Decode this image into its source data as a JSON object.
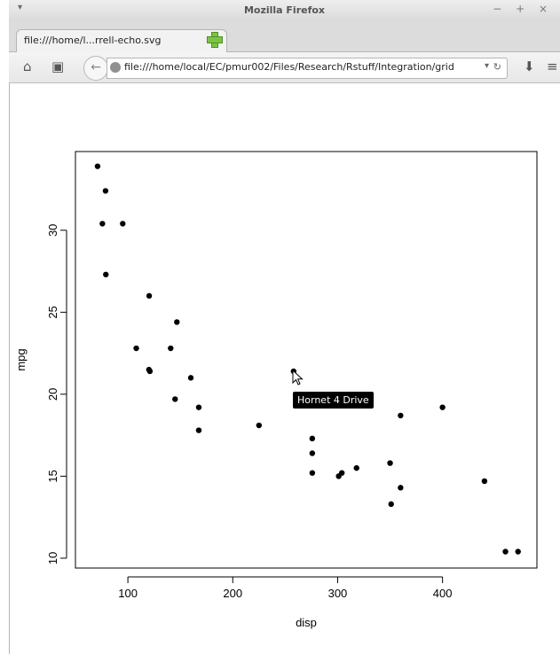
{
  "window": {
    "title": "Mozilla Firefox",
    "menu": "▾",
    "controls": "− + ×"
  },
  "tab": {
    "label": "file:///home/l...rrell-echo.svg",
    "close": "×"
  },
  "nav": {
    "url": "file:///home/local/EC/pmur002/Files/Research/Rstuff/Integration/grid"
  },
  "tooltip": {
    "text": "Hornet 4 Drive"
  },
  "chart_data": {
    "type": "scatter",
    "xlabel": "disp",
    "ylabel": "mpg",
    "xlim": [
      50,
      490
    ],
    "ylim": [
      9.4,
      34.8
    ],
    "xticks": [
      100,
      200,
      300,
      400
    ],
    "yticks": [
      10,
      15,
      20,
      25,
      30
    ],
    "points": [
      {
        "x": 71.1,
        "y": 33.9
      },
      {
        "x": 78.7,
        "y": 32.4
      },
      {
        "x": 75.7,
        "y": 30.4
      },
      {
        "x": 95.1,
        "y": 30.4
      },
      {
        "x": 79,
        "y": 27.3
      },
      {
        "x": 120.3,
        "y": 26
      },
      {
        "x": 146.7,
        "y": 24.4
      },
      {
        "x": 108,
        "y": 22.8
      },
      {
        "x": 140.8,
        "y": 22.8
      },
      {
        "x": 121,
        "y": 21.4
      },
      {
        "x": 160,
        "y": 21
      },
      {
        "x": 120.1,
        "y": 21.5
      },
      {
        "x": 258,
        "y": 21.4
      },
      {
        "x": 145,
        "y": 19.7
      },
      {
        "x": 167.6,
        "y": 19.2
      },
      {
        "x": 167.6,
        "y": 17.8
      },
      {
        "x": 225,
        "y": 18.1
      },
      {
        "x": 275.8,
        "y": 17.3
      },
      {
        "x": 275.8,
        "y": 16.4
      },
      {
        "x": 275.8,
        "y": 15.2
      },
      {
        "x": 301,
        "y": 15
      },
      {
        "x": 304,
        "y": 15.2
      },
      {
        "x": 318,
        "y": 15.5
      },
      {
        "x": 350,
        "y": 15.8
      },
      {
        "x": 360,
        "y": 18.7
      },
      {
        "x": 360,
        "y": 14.3
      },
      {
        "x": 400,
        "y": 19.2
      },
      {
        "x": 440,
        "y": 14.7
      },
      {
        "x": 351,
        "y": 13.3
      },
      {
        "x": 460,
        "y": 10.4
      },
      {
        "x": 472,
        "y": 10.4
      }
    ]
  }
}
